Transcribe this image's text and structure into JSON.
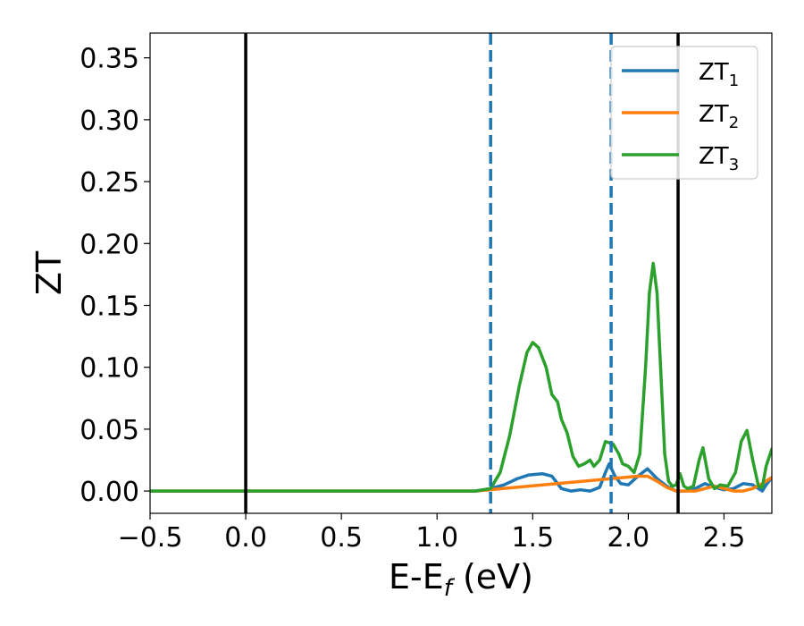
{
  "chart_data": {
    "type": "line",
    "xlabel": {
      "main": "E-E",
      "sub": "f",
      "unit": " (eV)"
    },
    "ylabel": "ZT",
    "xlim": [
      -0.5,
      2.75
    ],
    "ylim": [
      -0.018,
      0.37
    ],
    "xticks": [
      -0.5,
      0.0,
      0.5,
      1.0,
      1.5,
      2.0,
      2.5
    ],
    "xtick_labels": [
      "−0.5",
      "0.0",
      "0.5",
      "1.0",
      "1.5",
      "2.0",
      "2.5"
    ],
    "yticks": [
      0.0,
      0.05,
      0.1,
      0.15,
      0.2,
      0.25,
      0.3,
      0.35
    ],
    "ytick_labels": [
      "0.00",
      "0.05",
      "0.10",
      "0.15",
      "0.20",
      "0.25",
      "0.30",
      "0.35"
    ],
    "vlines": [
      {
        "x": 0.0,
        "style": "solid",
        "color": "#000000"
      },
      {
        "x": 2.26,
        "style": "solid",
        "color": "#000000"
      },
      {
        "x": 1.28,
        "style": "dashed",
        "color": "#1f77b4"
      },
      {
        "x": 1.91,
        "style": "dashed",
        "color": "#1f77b4"
      }
    ],
    "legend": {
      "placement": "top-right"
    },
    "series": [
      {
        "name": "ZT",
        "sub": "1",
        "color": "#1f77b4",
        "x": [
          -0.5,
          1.2,
          1.28,
          1.35,
          1.42,
          1.48,
          1.55,
          1.6,
          1.65,
          1.7,
          1.75,
          1.8,
          1.85,
          1.88,
          1.9,
          1.93,
          1.96,
          2.0,
          2.05,
          2.1,
          2.15,
          2.2,
          2.25,
          2.3,
          2.35,
          2.4,
          2.45,
          2.5,
          2.55,
          2.6,
          2.65,
          2.7,
          2.72,
          2.75
        ],
        "y": [
          0.0,
          0.0,
          0.002,
          0.005,
          0.01,
          0.013,
          0.014,
          0.012,
          0.002,
          0.0,
          0.001,
          0.0,
          0.003,
          0.015,
          0.022,
          0.012,
          0.006,
          0.005,
          0.012,
          0.018,
          0.01,
          0.004,
          0.0,
          0.0,
          0.002,
          0.006,
          0.003,
          0.001,
          0.002,
          0.006,
          0.005,
          0.0,
          0.005,
          0.011
        ]
      },
      {
        "name": "ZT",
        "sub": "2",
        "color": "#ff7f0e",
        "x": [
          -0.5,
          1.2,
          2.05,
          2.1,
          2.15,
          2.2,
          2.25,
          2.3,
          2.35,
          2.4,
          2.45,
          2.5,
          2.55,
          2.6,
          2.65,
          2.7,
          2.75
        ],
        "y": [
          0.0,
          0.0,
          0.012,
          0.012,
          0.008,
          0.003,
          0.0,
          0.0,
          0.0,
          0.002,
          0.004,
          0.002,
          0.0,
          0.0,
          0.002,
          0.006,
          0.011
        ]
      },
      {
        "name": "ZT",
        "sub": "3",
        "color": "#2ca02c",
        "x": [
          -0.5,
          1.2,
          1.28,
          1.33,
          1.38,
          1.43,
          1.47,
          1.5,
          1.53,
          1.57,
          1.6,
          1.63,
          1.65,
          1.68,
          1.71,
          1.74,
          1.77,
          1.8,
          1.82,
          1.85,
          1.88,
          1.92,
          1.95,
          1.97,
          2.0,
          2.03,
          2.06,
          2.09,
          2.11,
          2.13,
          2.15,
          2.17,
          2.19,
          2.21,
          2.23,
          2.25,
          2.27,
          2.29,
          2.31,
          2.34,
          2.37,
          2.39,
          2.42,
          2.45,
          2.48,
          2.52,
          2.56,
          2.59,
          2.62,
          2.65,
          2.68,
          2.7,
          2.72,
          2.75
        ],
        "y": [
          0.0,
          0.0,
          0.002,
          0.015,
          0.045,
          0.085,
          0.112,
          0.12,
          0.116,
          0.1,
          0.078,
          0.072,
          0.058,
          0.047,
          0.028,
          0.02,
          0.022,
          0.025,
          0.02,
          0.025,
          0.04,
          0.038,
          0.03,
          0.022,
          0.02,
          0.015,
          0.03,
          0.1,
          0.16,
          0.184,
          0.16,
          0.095,
          0.03,
          0.008,
          0.004,
          0.005,
          0.014,
          0.004,
          0.002,
          0.004,
          0.025,
          0.035,
          0.01,
          0.002,
          0.005,
          0.004,
          0.015,
          0.04,
          0.049,
          0.025,
          0.004,
          0.003,
          0.02,
          0.034
        ]
      }
    ]
  }
}
